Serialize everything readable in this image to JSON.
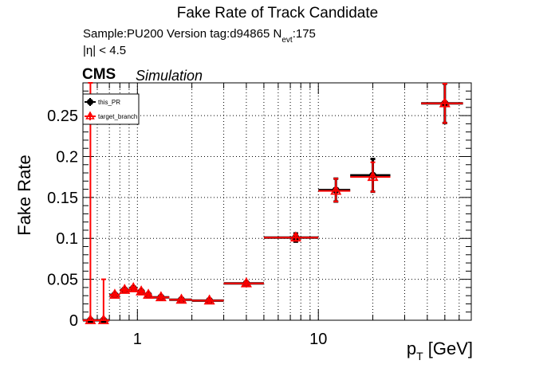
{
  "header": {
    "title": "Fake Rate of Track Candidate",
    "sample_text": "Sample:PU200   Version tag:d94865  N",
    "nevt_sub": "evt",
    "nevt_value": ":175",
    "eta_cut": "|η| < 4.5",
    "cms": "CMS",
    "simulation": "Simulation"
  },
  "axes": {
    "ylabel": "Fake Rate",
    "xlabel_main": "p",
    "xlabel_sub": "T",
    "xlabel_unit": " [GeV]"
  },
  "colors": {
    "this_PR": "#000000",
    "target_branch": "#ff0000",
    "grid": "#000000"
  },
  "chart_data": {
    "type": "scatter",
    "xscale": "log",
    "xlim": [
      0.5,
      70
    ],
    "ylim": [
      0,
      0.29
    ],
    "x_ticks": [
      {
        "value": 1,
        "label": "1"
      },
      {
        "value": 10,
        "label": "10"
      }
    ],
    "y_ticks": [
      {
        "value": 0,
        "label": "0"
      },
      {
        "value": 0.05,
        "label": "0.05"
      },
      {
        "value": 0.1,
        "label": "0.1"
      },
      {
        "value": 0.15,
        "label": "0.15"
      },
      {
        "value": 0.2,
        "label": "0.2"
      },
      {
        "value": 0.25,
        "label": "0.25"
      }
    ],
    "grid": true,
    "legend_position": "top-left",
    "series": [
      {
        "name": "this_PR",
        "marker": "circle",
        "points": [
          {
            "x": 0.55,
            "xlo": 0.5,
            "xhi": 0.6,
            "y": 0.0,
            "ylo": 0.0,
            "yhi": 0.0
          },
          {
            "x": 0.65,
            "xlo": 0.6,
            "xhi": 0.7,
            "y": 0.0,
            "ylo": 0.0,
            "yhi": 0.0
          },
          {
            "x": 0.75,
            "xlo": 0.7,
            "xhi": 0.8,
            "y": 0.031,
            "ylo": 0.029,
            "yhi": 0.033
          },
          {
            "x": 0.85,
            "xlo": 0.8,
            "xhi": 0.9,
            "y": 0.037,
            "ylo": 0.035,
            "yhi": 0.039
          },
          {
            "x": 0.95,
            "xlo": 0.9,
            "xhi": 1.0,
            "y": 0.039,
            "ylo": 0.037,
            "yhi": 0.041
          },
          {
            "x": 1.05,
            "xlo": 1.0,
            "xhi": 1.1,
            "y": 0.035,
            "ylo": 0.033,
            "yhi": 0.037
          },
          {
            "x": 1.15,
            "xlo": 1.1,
            "xhi": 1.2,
            "y": 0.031,
            "ylo": 0.029,
            "yhi": 0.033
          },
          {
            "x": 1.35,
            "xlo": 1.2,
            "xhi": 1.5,
            "y": 0.028,
            "ylo": 0.026,
            "yhi": 0.03
          },
          {
            "x": 1.75,
            "xlo": 1.5,
            "xhi": 2.0,
            "y": 0.025,
            "ylo": 0.023,
            "yhi": 0.027
          },
          {
            "x": 2.5,
            "xlo": 2.0,
            "xhi": 3.0,
            "y": 0.024,
            "ylo": 0.022,
            "yhi": 0.026
          },
          {
            "x": 4.0,
            "xlo": 3.0,
            "xhi": 5.0,
            "y": 0.045,
            "ylo": 0.043,
            "yhi": 0.047
          },
          {
            "x": 7.5,
            "xlo": 5.0,
            "xhi": 10.0,
            "y": 0.101,
            "ylo": 0.096,
            "yhi": 0.106
          },
          {
            "x": 12.5,
            "xlo": 10.0,
            "xhi": 15.0,
            "y": 0.159,
            "ylo": 0.145,
            "yhi": 0.173
          },
          {
            "x": 20.0,
            "xlo": 15.0,
            "xhi": 25.0,
            "y": 0.177,
            "ylo": 0.157,
            "yhi": 0.197
          },
          {
            "x": 50.0,
            "xlo": 37.0,
            "xhi": 63.0,
            "y": 0.265,
            "ylo": 0.241,
            "yhi": 0.289
          }
        ]
      },
      {
        "name": "target_branch",
        "marker": "triangle",
        "points": [
          {
            "x": 0.55,
            "xlo": 0.5,
            "xhi": 0.6,
            "y": 0.0,
            "ylo": 0.0,
            "yhi": 0.29
          },
          {
            "x": 0.65,
            "xlo": 0.6,
            "xhi": 0.7,
            "y": 0.0,
            "ylo": 0.0,
            "yhi": 0.05
          },
          {
            "x": 0.75,
            "xlo": 0.7,
            "xhi": 0.8,
            "y": 0.031,
            "ylo": 0.029,
            "yhi": 0.033
          },
          {
            "x": 0.85,
            "xlo": 0.8,
            "xhi": 0.9,
            "y": 0.037,
            "ylo": 0.035,
            "yhi": 0.039
          },
          {
            "x": 0.95,
            "xlo": 0.9,
            "xhi": 1.0,
            "y": 0.039,
            "ylo": 0.037,
            "yhi": 0.041
          },
          {
            "x": 1.05,
            "xlo": 1.0,
            "xhi": 1.1,
            "y": 0.035,
            "ylo": 0.033,
            "yhi": 0.037
          },
          {
            "x": 1.15,
            "xlo": 1.1,
            "xhi": 1.2,
            "y": 0.031,
            "ylo": 0.029,
            "yhi": 0.033
          },
          {
            "x": 1.35,
            "xlo": 1.2,
            "xhi": 1.5,
            "y": 0.028,
            "ylo": 0.026,
            "yhi": 0.03
          },
          {
            "x": 1.75,
            "xlo": 1.5,
            "xhi": 2.0,
            "y": 0.025,
            "ylo": 0.023,
            "yhi": 0.027
          },
          {
            "x": 2.5,
            "xlo": 2.0,
            "xhi": 3.0,
            "y": 0.024,
            "ylo": 0.022,
            "yhi": 0.026
          },
          {
            "x": 4.0,
            "xlo": 3.0,
            "xhi": 5.0,
            "y": 0.045,
            "ylo": 0.043,
            "yhi": 0.047
          },
          {
            "x": 7.5,
            "xlo": 5.0,
            "xhi": 10.0,
            "y": 0.101,
            "ylo": 0.097,
            "yhi": 0.105
          },
          {
            "x": 12.5,
            "xlo": 10.0,
            "xhi": 15.0,
            "y": 0.158,
            "ylo": 0.145,
            "yhi": 0.173
          },
          {
            "x": 20.0,
            "xlo": 15.0,
            "xhi": 25.0,
            "y": 0.175,
            "ylo": 0.157,
            "yhi": 0.193
          },
          {
            "x": 50.0,
            "xlo": 37.0,
            "xhi": 63.0,
            "y": 0.265,
            "ylo": 0.241,
            "yhi": 0.289
          }
        ]
      }
    ]
  }
}
